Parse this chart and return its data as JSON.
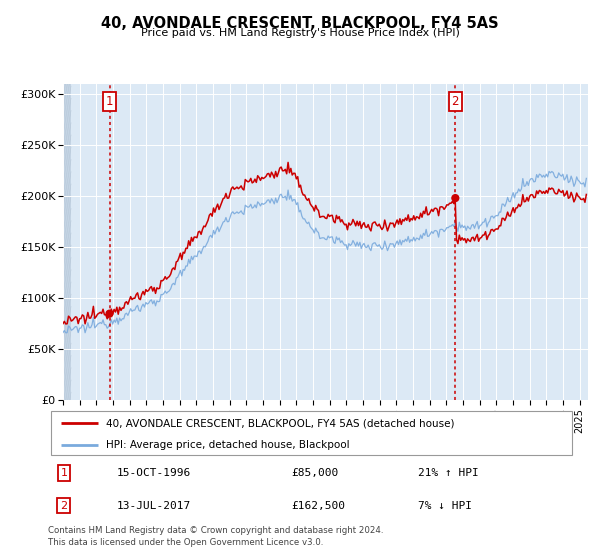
{
  "title": "40, AVONDALE CRESCENT, BLACKPOOL, FY4 5AS",
  "subtitle": "Price paid vs. HM Land Registry's House Price Index (HPI)",
  "sale1_date": "15-OCT-1996",
  "sale1_price": 85000,
  "sale1_pct": "21% ↑ HPI",
  "sale1_x": 1996.79,
  "sale1_label": "1",
  "sale2_date": "13-JUL-2017",
  "sale2_price": 162500,
  "sale2_pct": "7% ↓ HPI",
  "sale2_x": 2017.54,
  "sale2_label": "2",
  "legend_line1": "40, AVONDALE CRESCENT, BLACKPOOL, FY4 5AS (detached house)",
  "legend_line2": "HPI: Average price, detached house, Blackpool",
  "footer1": "Contains HM Land Registry data © Crown copyright and database right 2024.",
  "footer2": "This data is licensed under the Open Government Licence v3.0.",
  "hpi_color": "#7aaadd",
  "price_color": "#cc0000",
  "dot_color": "#cc0000",
  "vline_color": "#cc0000",
  "ylim": [
    0,
    310000
  ],
  "xlim": [
    1994.0,
    2025.5
  ],
  "yticks": [
    0,
    50000,
    100000,
    150000,
    200000,
    250000,
    300000
  ],
  "ytick_labels": [
    "£0",
    "£50K",
    "£100K",
    "£150K",
    "£200K",
    "£250K",
    "£300K"
  ],
  "xticks": [
    1994,
    1995,
    1996,
    1997,
    1998,
    1999,
    2000,
    2001,
    2002,
    2003,
    2004,
    2005,
    2006,
    2007,
    2008,
    2009,
    2010,
    2011,
    2012,
    2013,
    2014,
    2015,
    2016,
    2017,
    2018,
    2019,
    2020,
    2021,
    2022,
    2023,
    2024,
    2025
  ],
  "bg_plot": "#dce9f5",
  "bg_hatch": "#c4d4e4",
  "grid_color": "#ffffff"
}
